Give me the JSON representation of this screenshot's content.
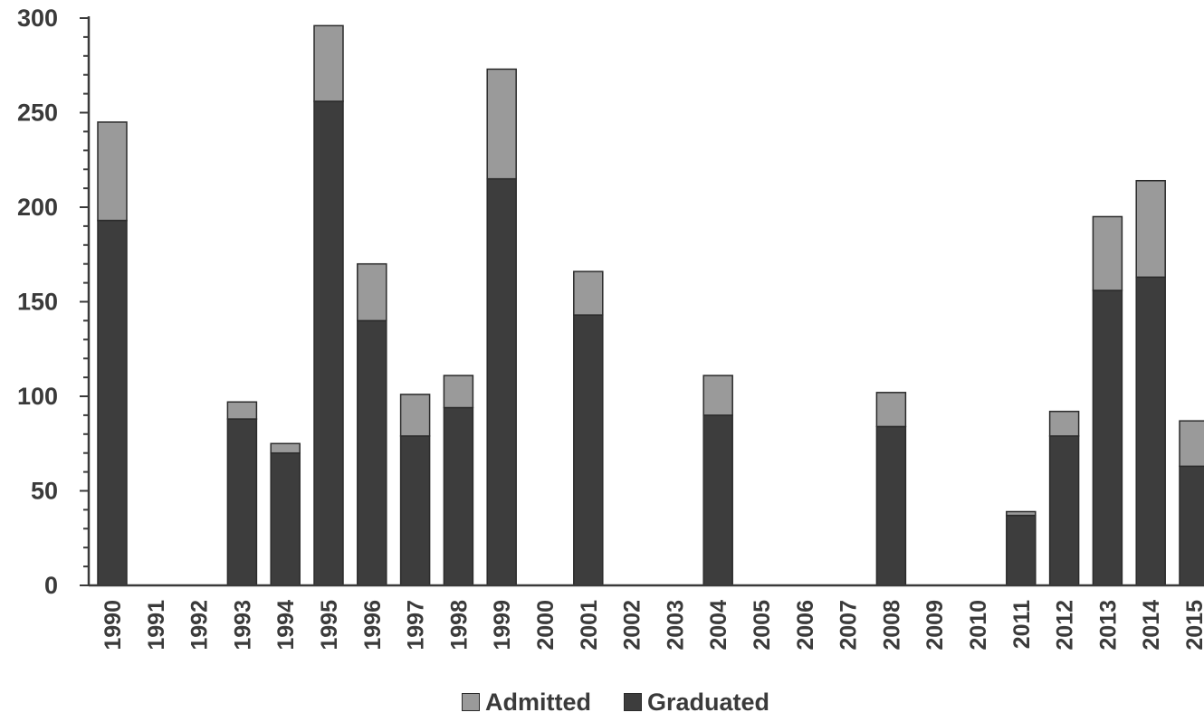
{
  "chart_data": {
    "type": "bar",
    "stacked": true,
    "categories": [
      "1990",
      "1991",
      "1992",
      "1993",
      "1994",
      "1995",
      "1996",
      "1997",
      "1998",
      "1999",
      "2000",
      "2001",
      "2002",
      "2003",
      "2004",
      "2005",
      "2006",
      "2007",
      "2008",
      "2009",
      "2010",
      "2011",
      "2012",
      "2013",
      "2014",
      "2015"
    ],
    "series": [
      {
        "name": "Graduated",
        "color": "#3d3d3d",
        "values": [
          193,
          0,
          0,
          88,
          70,
          256,
          140,
          79,
          94,
          215,
          0,
          143,
          0,
          0,
          90,
          0,
          0,
          0,
          84,
          0,
          0,
          37,
          79,
          156,
          163,
          63
        ]
      },
      {
        "name": "Admitted",
        "color": "#9a9a9a",
        "values": [
          52,
          0,
          0,
          9,
          5,
          40,
          30,
          22,
          17,
          58,
          0,
          23,
          0,
          0,
          21,
          0,
          0,
          0,
          18,
          0,
          0,
          2,
          13,
          39,
          51,
          24
        ]
      }
    ],
    "ylim": [
      0,
      300
    ],
    "yticks": [
      0,
      50,
      100,
      150,
      200,
      250,
      300
    ],
    "grid": false,
    "legend_position": "bottom",
    "legend": [
      "Admitted",
      "Graduated"
    ]
  }
}
